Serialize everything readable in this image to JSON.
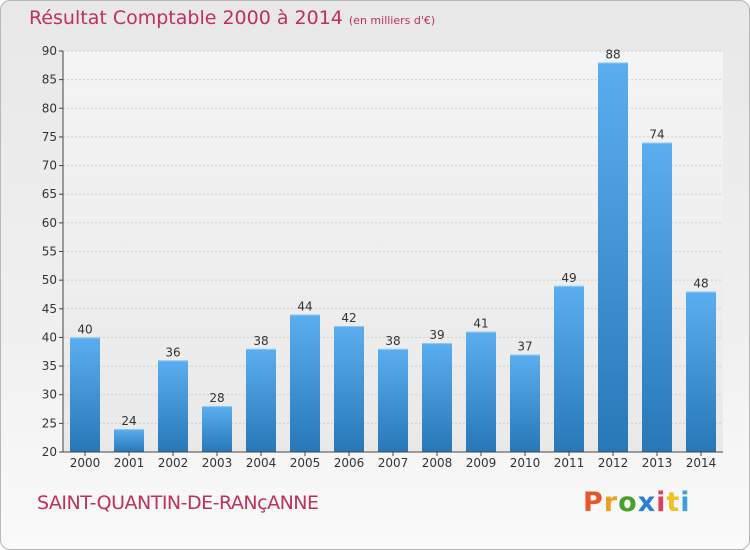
{
  "header": {
    "title": "Résultat Comptable 2000 à 2014",
    "subtitle": "(en milliers d'€)"
  },
  "footer": {
    "commune": "SAINT-QUANTIN-DE-RANçANNE",
    "logo_text": "Proxiti"
  },
  "colors": {
    "title": "#c0305a",
    "bar_light": "#5aaef0",
    "bar_dark": "#2878b8",
    "logo_letters": [
      "#e8562a",
      "#f0a020",
      "#4aa02c",
      "#2a7fd0",
      "#e04060",
      "#f0c020",
      "#3aa0e0"
    ]
  },
  "chart_data": {
    "type": "bar",
    "title": "Résultat Comptable 2000 à 2014",
    "subtitle": "(en milliers d'€)",
    "categories": [
      "2000",
      "2001",
      "2002",
      "2003",
      "2004",
      "2005",
      "2006",
      "2007",
      "2008",
      "2009",
      "2010",
      "2011",
      "2012",
      "2013",
      "2014"
    ],
    "values": [
      40,
      24,
      36,
      28,
      38,
      44,
      42,
      38,
      39,
      41,
      37,
      49,
      88,
      74,
      48
    ],
    "ylim": [
      20,
      90
    ],
    "yticks": [
      20,
      25,
      30,
      35,
      40,
      45,
      50,
      55,
      60,
      65,
      70,
      75,
      80,
      85,
      90
    ],
    "grid": true,
    "data_labels": true
  }
}
